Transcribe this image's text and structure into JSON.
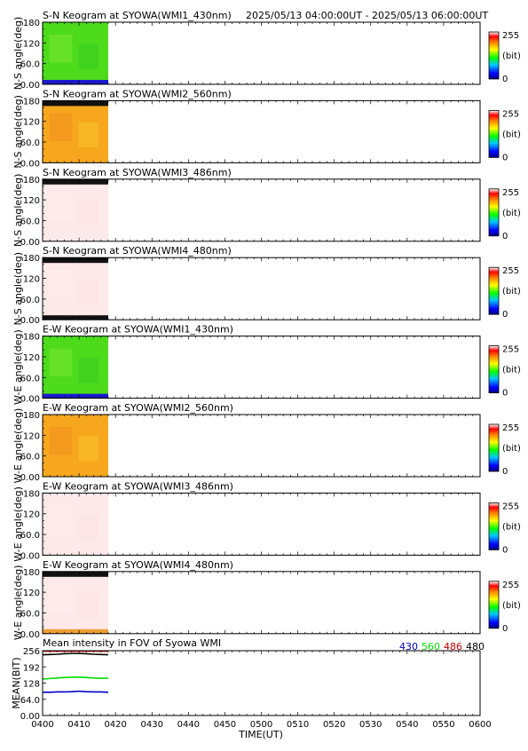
{
  "header": {
    "date_range": "2025/05/13 04:00:00UT - 2025/05/13 06:00:00UT"
  },
  "colorbar": {
    "max_label": "255",
    "unit_label": "(bit)",
    "min_label": "0"
  },
  "chart_data": [
    {
      "type": "heatmap",
      "title": "S-N Keogram at SYOWA(WMI1_430nm)",
      "ylabel": "N-S angle(deg)",
      "yticks": [
        "180",
        "120",
        "60.0",
        "0.00"
      ],
      "ylim": [
        0,
        180
      ],
      "x_range": [
        "0400",
        "0600"
      ],
      "data_end": "0418",
      "fill": "green",
      "edge_bottom": "blue",
      "edge_top": "none"
    },
    {
      "type": "heatmap",
      "title": "S-N Keogram at SYOWA(WMI2_560nm)",
      "ylabel": "N-S angle(deg)",
      "yticks": [
        "180",
        "120",
        "60.0",
        "0.00"
      ],
      "ylim": [
        0,
        180
      ],
      "x_range": [
        "0400",
        "0600"
      ],
      "data_end": "0418",
      "fill": "orange",
      "edge_bottom": "none",
      "edge_top": "black"
    },
    {
      "type": "heatmap",
      "title": "S-N Keogram at SYOWA(WMI3_486nm)",
      "ylabel": "N-S angle(deg)",
      "yticks": [
        "180",
        "120",
        "60.0",
        "0.00"
      ],
      "ylim": [
        0,
        180
      ],
      "x_range": [
        "0400",
        "0600"
      ],
      "data_end": "0418",
      "fill": "pink",
      "edge_bottom": "none",
      "edge_top": "black"
    },
    {
      "type": "heatmap",
      "title": "S-N Keogram at SYOWA(WMI4_480nm)",
      "ylabel": "N-S angle(deg)",
      "yticks": [
        "180",
        "120",
        "60.0",
        "0.00"
      ],
      "ylim": [
        0,
        180
      ],
      "x_range": [
        "0400",
        "0600"
      ],
      "data_end": "0418",
      "fill": "pink",
      "edge_bottom": "black",
      "edge_top": "black"
    },
    {
      "type": "heatmap",
      "title": "E-W Keogram at SYOWA(WMI1_430nm)",
      "ylabel": "W-E angle(deg)",
      "yticks": [
        "180",
        "120",
        "60.0",
        "0.00"
      ],
      "ylim": [
        0,
        180
      ],
      "x_range": [
        "0400",
        "0600"
      ],
      "data_end": "0418",
      "fill": "green",
      "edge_bottom": "blue",
      "edge_top": "none"
    },
    {
      "type": "heatmap",
      "title": "E-W Keogram at SYOWA(WMI2_560nm)",
      "ylabel": "W-E angle(deg)",
      "yticks": [
        "180",
        "120",
        "60.0",
        "0.00"
      ],
      "ylim": [
        0,
        180
      ],
      "x_range": [
        "0400",
        "0600"
      ],
      "data_end": "0418",
      "fill": "orange",
      "edge_bottom": "none",
      "edge_top": "none"
    },
    {
      "type": "heatmap",
      "title": "E-W Keogram at SYOWA(WMI3_486nm)",
      "ylabel": "W-E angle(deg)",
      "yticks": [
        "180",
        "120",
        "60.0",
        "0.00"
      ],
      "ylim": [
        0,
        180
      ],
      "x_range": [
        "0400",
        "0600"
      ],
      "data_end": "0418",
      "fill": "pink",
      "edge_bottom": "none",
      "edge_top": "none"
    },
    {
      "type": "heatmap",
      "title": "E-W Keogram at SYOWA(WMI4_480nm)",
      "ylabel": "W-E angle(deg)",
      "yticks": [
        "180",
        "120",
        "60.0",
        "0.00"
      ],
      "ylim": [
        0,
        180
      ],
      "x_range": [
        "0400",
        "0600"
      ],
      "data_end": "0418",
      "fill": "pink",
      "edge_bottom": "orange",
      "edge_top": "black"
    },
    {
      "type": "line",
      "title": "Mean intensity in FOV of Syowa WMI",
      "ylabel": "MEAN(BIT)",
      "xlabel": "TIME(UT)",
      "yticks": [
        "256",
        "192",
        "128",
        "64.0",
        "0.00"
      ],
      "ylim": [
        0,
        256
      ],
      "xticks": [
        "0400",
        "0410",
        "0420",
        "0430",
        "0440",
        "0450",
        "0500",
        "0510",
        "0520",
        "0530",
        "0540",
        "0550",
        "0600"
      ],
      "x_range_minutes": [
        0,
        120
      ],
      "series": [
        {
          "name": "430",
          "color": "#0000cc",
          "x": [
            0,
            2,
            4,
            6,
            8,
            10,
            12,
            14,
            16,
            18
          ],
          "y": [
            92,
            92,
            93,
            93,
            94,
            96,
            94,
            93,
            93,
            92
          ]
        },
        {
          "name": "560",
          "color": "#00dd00",
          "x": [
            0,
            2,
            4,
            6,
            8,
            10,
            12,
            14,
            16,
            18
          ],
          "y": [
            144,
            146,
            148,
            150,
            151,
            152,
            150,
            148,
            147,
            147
          ]
        },
        {
          "name": "486",
          "color": "#cc0000",
          "x": [
            0,
            2,
            4,
            6,
            8,
            10,
            12,
            14,
            16,
            18
          ],
          "y": [
            254,
            254,
            254,
            254,
            254,
            254,
            254,
            254,
            254,
            254
          ]
        },
        {
          "name": "480",
          "color": "#000000",
          "x": [
            0,
            2,
            4,
            6,
            8,
            10,
            12,
            14,
            16,
            18
          ],
          "y": [
            240,
            241,
            242,
            244,
            245,
            245,
            244,
            242,
            241,
            240
          ]
        }
      ]
    }
  ]
}
